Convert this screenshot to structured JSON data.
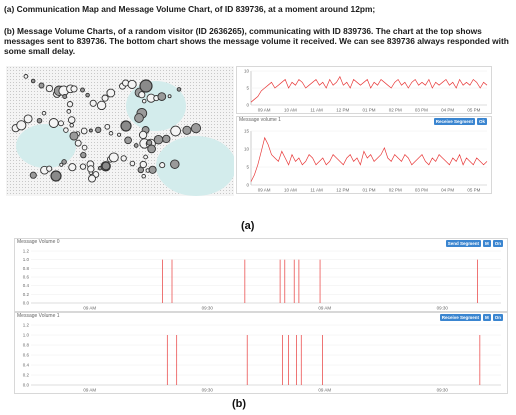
{
  "captions": {
    "a": "(a) Communication Map and Message Volume Chart, of ID 839736, at a moment around 12pm;",
    "b": "(b) Message Volume Charts, of a random visitor (ID 2636265), communicating with ID 839736. The chart at the top shows messages sent to 839736. The bottom chart shows the message volume it received. We can see 839736 always responded with some small delay."
  },
  "sub_labels": {
    "a": "(a)",
    "b": "(b)"
  },
  "colors": {
    "series": "#e83a3a",
    "button": "#3a85d0",
    "map_region": "#d3ecec",
    "node_stroke": "#333333"
  },
  "chart_data": [
    {
      "type": "line",
      "y_ticks": [
        "10",
        "5",
        "0"
      ],
      "ylim": [
        0,
        12
      ],
      "x_ticks": [
        "09 AM",
        "10 AM",
        "11 AM",
        "12 PM",
        "01 PM",
        "02 PM",
        "03 PM",
        "04 PM",
        "05 PM"
      ],
      "series": [
        {
          "values": [
            1,
            2,
            3,
            5,
            6,
            7,
            8,
            6,
            7,
            8,
            9,
            6,
            8,
            7,
            9,
            8,
            6,
            7,
            8,
            9,
            7,
            8,
            6,
            9,
            7,
            8,
            10,
            7,
            8,
            6,
            9,
            8,
            7,
            8,
            9,
            6,
            8,
            7,
            9,
            8,
            7,
            6,
            8,
            9,
            7,
            8,
            6,
            8,
            9,
            7,
            8,
            7,
            9,
            6,
            8,
            7,
            8,
            9,
            7,
            8,
            6,
            9,
            7,
            8,
            7,
            9,
            8,
            6,
            8,
            7
          ]
        }
      ]
    },
    {
      "type": "line",
      "label": "Message volume 1",
      "buttons": [
        "Receive Segment",
        "Ok"
      ],
      "y_ticks": [
        "15",
        "10",
        "5",
        "0"
      ],
      "ylim": [
        0,
        16
      ],
      "x_ticks": [
        "09 AM",
        "10 AM",
        "11 AM",
        "12 PM",
        "01 PM",
        "02 PM",
        "03 PM",
        "04 PM",
        "05 PM"
      ],
      "series": [
        {
          "values": [
            1,
            3,
            6,
            10,
            14,
            12,
            9,
            8,
            7,
            10,
            8,
            6,
            9,
            7,
            8,
            6,
            7,
            9,
            8,
            6,
            7,
            8,
            6,
            7,
            9,
            8,
            7,
            6,
            8,
            9,
            7,
            8,
            6,
            10,
            8,
            9,
            7,
            8,
            9,
            11,
            8,
            7,
            9,
            8,
            7,
            9,
            8,
            6,
            7,
            8,
            9,
            7,
            6,
            8,
            7,
            9,
            8,
            7,
            6,
            8,
            7,
            9,
            6,
            8,
            7,
            6,
            8,
            7,
            6,
            7
          ]
        }
      ]
    },
    {
      "type": "line",
      "label": "Message Volume 0",
      "buttons": [
        "Send Segment",
        "M",
        "On"
      ],
      "y_ticks": [
        "1.2",
        "1.0",
        "0.8",
        "0.6",
        "0.4",
        "0.2",
        "0.0"
      ],
      "ylim": [
        0,
        1.2
      ],
      "x_ticks": [
        "09 AM",
        "09:30",
        "09 AM",
        "09:30"
      ],
      "series": [
        {
          "values": []
        }
      ],
      "spikes_x": [
        0.28,
        0.3,
        0.455,
        0.53,
        0.54,
        0.56,
        0.57,
        0.615,
        0.95
      ]
    },
    {
      "type": "line",
      "label": "Message Volume 1",
      "buttons": [
        "Receive Segment",
        "M",
        "On"
      ],
      "y_ticks": [
        "1.2",
        "1.0",
        "0.8",
        "0.6",
        "0.4",
        "0.2",
        "0.0"
      ],
      "ylim": [
        0,
        1.2
      ],
      "x_ticks": [
        "09 AM",
        "09:30",
        "09 AM",
        "09:30"
      ],
      "series": [
        {
          "values": []
        }
      ],
      "spikes_x": [
        0.29,
        0.31,
        0.46,
        0.535,
        0.548,
        0.565,
        0.575,
        0.62,
        0.955
      ]
    }
  ]
}
